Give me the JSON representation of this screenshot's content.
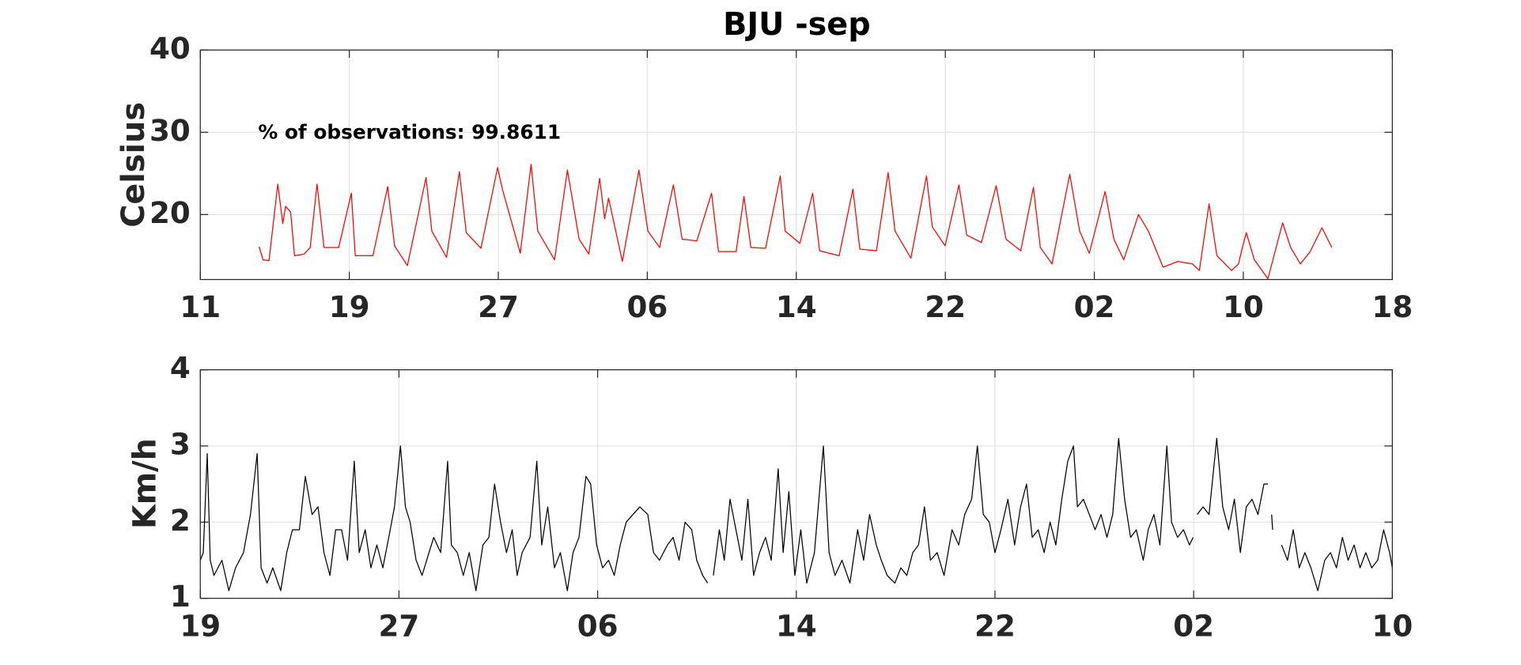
{
  "chart_data": [
    {
      "type": "line",
      "title": "BJU -sep",
      "ylabel": "Celsius",
      "annotation": "% of observations: 99.8611",
      "color": "#ff0000",
      "grid": true,
      "xlim": [
        0,
        64
      ],
      "ylim": [
        12.1,
        40
      ],
      "xticks": [
        {
          "value": 0,
          "label": "11"
        },
        {
          "value": 8,
          "label": "19"
        },
        {
          "value": 16,
          "label": "27"
        },
        {
          "value": 24,
          "label": "06"
        },
        {
          "value": 32,
          "label": "14"
        },
        {
          "value": 40,
          "label": "22"
        },
        {
          "value": 48,
          "label": "02"
        },
        {
          "value": 56,
          "label": "10"
        },
        {
          "value": 64,
          "label": "18"
        }
      ],
      "yticks": [
        20,
        30,
        40
      ],
      "x": [
        3.16,
        3.37,
        3.69,
        4.16,
        4.43,
        4.58,
        4.85,
        5.06,
        5.58,
        5.9,
        6.27,
        6.64,
        7.43,
        8.11,
        8.32,
        9.27,
        10.06,
        10.43,
        11.12,
        12.12,
        12.43,
        13.22,
        13.91,
        14.28,
        15.07,
        15.96,
        16.23,
        17.18,
        17.76,
        18.12,
        19.02,
        19.71,
        20.34,
        20.86,
        21.44,
        21.71,
        21.92,
        22.66,
        23.55,
        24.03,
        24.66,
        25.4,
        25.87,
        26.66,
        27.45,
        27.82,
        28.77,
        29.19,
        29.56,
        30.35,
        31.14,
        31.4,
        32.19,
        32.88,
        33.25,
        34.3,
        35.04,
        35.41,
        36.3,
        36.93,
        37.3,
        38.15,
        38.99,
        39.3,
        39.99,
        40.73,
        41.15,
        41.94,
        42.73,
        43.26,
        44.05,
        44.73,
        45.1,
        45.73,
        46.68,
        47.21,
        47.73,
        48.58,
        49.05,
        49.58,
        50.37,
        50.9,
        51.69,
        52.48,
        53.27,
        53.64,
        54.16,
        54.58,
        55.37,
        55.74,
        55.95,
        56.16,
        56.59,
        57.32,
        58.11,
        58.54,
        59.06,
        59.59,
        60.22,
        60.75
      ],
      "values": [
        16.1,
        14.5,
        14.4,
        23.7,
        18.9,
        21.0,
        20.3,
        15.0,
        15.2,
        16.0,
        23.7,
        16.0,
        16.0,
        22.6,
        15.0,
        15.0,
        23.4,
        16.2,
        13.8,
        24.5,
        18.0,
        14.8,
        25.2,
        17.8,
        15.9,
        25.7,
        23.0,
        15.3,
        26.1,
        18.0,
        14.5,
        25.4,
        17.0,
        15.2,
        24.4,
        19.5,
        22.0,
        14.3,
        25.4,
        18.0,
        16.0,
        23.6,
        17.0,
        16.8,
        22.6,
        15.5,
        15.5,
        22.2,
        16.0,
        15.9,
        24.7,
        18.0,
        16.5,
        22.6,
        15.6,
        15.0,
        23.1,
        15.8,
        15.6,
        25.1,
        18.0,
        14.7,
        24.7,
        18.5,
        16.2,
        23.6,
        17.5,
        16.6,
        23.5,
        17.0,
        15.6,
        23.3,
        16.0,
        14.0,
        24.9,
        18.0,
        15.3,
        22.8,
        17.0,
        14.5,
        20.0,
        18.0,
        13.6,
        14.3,
        14.0,
        13.2,
        21.3,
        15.0,
        13.2,
        14.0,
        16.0,
        17.8,
        14.5,
        12.2,
        19.0,
        16.0,
        14.0,
        15.5,
        18.4,
        16.0
      ]
    },
    {
      "type": "line",
      "ylabel": "Km/h",
      "color": "#000000",
      "grid": true,
      "xlim": [
        0,
        48
      ],
      "ylim": [
        1,
        4
      ],
      "xticks": [
        {
          "value": 0,
          "label": "19"
        },
        {
          "value": 8,
          "label": "27"
        },
        {
          "value": 16,
          "label": "06"
        },
        {
          "value": 24,
          "label": "14"
        },
        {
          "value": 32,
          "label": "22"
        },
        {
          "value": 40,
          "label": "02"
        },
        {
          "value": 48,
          "label": "10"
        }
      ],
      "yticks": [
        1,
        2,
        3,
        4
      ],
      "x": [
        0,
        0.12,
        0.28,
        0.4,
        0.55,
        0.87,
        1.15,
        1.42,
        1.74,
        2.02,
        2.29,
        2.45,
        2.69,
        2.92,
        3.24,
        3.48,
        3.71,
        3.99,
        4.23,
        4.5,
        4.74,
        4.98,
        5.22,
        5.45,
        5.69,
        5.93,
        6.2,
        6.4,
        6.64,
        6.87,
        7.11,
        7.35,
        7.59,
        7.82,
        8.06,
        8.26,
        8.45,
        8.69,
        8.93,
        9.21,
        9.4,
        9.68,
        9.96,
        10.11,
        10.35,
        10.59,
        10.83,
        11.1,
        11.38,
        11.62,
        11.85,
        12.09,
        12.33,
        12.56,
        12.76,
        12.96,
        13.28,
        13.55,
        13.75,
        13.99,
        14.26,
        14.5,
        14.78,
        15.01,
        15.25,
        15.53,
        15.72,
        15.96,
        16.2,
        16.44,
        16.67,
        16.91,
        17.15,
        17.42,
        17.7,
        18.02,
        18.25,
        18.49,
        18.81,
        19.04,
        19.28,
        19.52,
        19.79,
        19.99,
        20.23,
        20.43,
        20.54,
        20.66,
        20.9,
        21.1,
        21.33,
        21.57,
        21.81,
        22.05,
        22.28,
        22.52,
        22.76,
        22.99,
        23.27,
        23.47,
        23.7,
        23.94,
        24.18,
        24.42,
        24.73,
        25.09,
        25.32,
        25.56,
        25.84,
        26.16,
        26.47,
        26.71,
        26.95,
        27.22,
        27.42,
        27.66,
        27.97,
        28.21,
        28.45,
        28.69,
        28.92,
        29.16,
        29.4,
        29.67,
        29.95,
        30.27,
        30.54,
        30.78,
        31.06,
        31.29,
        31.53,
        31.77,
        32.0,
        32.24,
        32.52,
        32.79,
        33.03,
        33.27,
        33.5,
        33.74,
        33.98,
        34.22,
        34.45,
        34.69,
        34.93,
        35.16,
        35.32,
        35.56,
        35.8,
        36.03,
        36.27,
        36.51,
        36.74,
        36.98,
        37.22,
        37.46,
        37.69,
        37.97,
        38.17,
        38.4,
        38.64,
        38.92,
        39.11,
        39.35,
        39.59,
        39.83,
        39.98,
        40.06,
        40.14,
        40.38,
        40.62,
        40.93,
        41.17,
        41.41,
        41.64,
        41.88,
        42.12,
        42.35,
        42.59,
        42.83,
        42.99,
        43.07,
        43.14,
        43.18,
        43.3,
        43.54,
        43.78,
        44.01,
        44.25,
        44.48,
        44.72,
        45.0,
        45.28,
        45.51,
        45.75,
        45.99,
        46.22,
        46.46,
        46.7,
        46.93,
        47.17,
        47.41,
        47.65,
        47.89,
        48.0
      ],
      "values": [
        1.5,
        1.6,
        2.9,
        1.5,
        1.3,
        1.5,
        1.1,
        1.4,
        1.6,
        2.1,
        2.9,
        1.4,
        1.2,
        1.4,
        1.1,
        1.6,
        1.9,
        1.9,
        2.6,
        2.1,
        2.2,
        1.6,
        1.3,
        1.9,
        1.9,
        1.5,
        2.8,
        1.6,
        1.9,
        1.4,
        1.7,
        1.4,
        1.8,
        2.2,
        3.0,
        2.2,
        2.0,
        1.5,
        1.3,
        1.6,
        1.8,
        1.6,
        2.8,
        1.7,
        1.6,
        1.3,
        1.6,
        1.1,
        1.7,
        1.8,
        2.5,
        2.0,
        1.6,
        1.9,
        1.3,
        1.6,
        1.8,
        2.8,
        1.7,
        2.2,
        1.4,
        1.6,
        1.1,
        1.6,
        1.8,
        2.6,
        2.5,
        1.7,
        1.4,
        1.5,
        1.3,
        1.7,
        2.0,
        2.1,
        2.2,
        2.1,
        1.6,
        1.5,
        1.7,
        1.8,
        1.5,
        2.0,
        1.9,
        1.5,
        1.3,
        1.2,
        null,
        1.3,
        1.9,
        1.5,
        2.3,
        1.9,
        1.5,
        2.3,
        1.3,
        1.6,
        1.8,
        1.5,
        2.7,
        1.6,
        2.4,
        1.3,
        1.9,
        1.2,
        1.6,
        3.0,
        1.6,
        1.3,
        1.5,
        1.2,
        1.9,
        1.5,
        2.1,
        1.7,
        1.5,
        1.3,
        1.2,
        1.4,
        1.3,
        1.6,
        1.7,
        2.2,
        1.5,
        1.6,
        1.3,
        1.9,
        1.7,
        2.1,
        2.3,
        3.0,
        2.1,
        2.0,
        1.6,
        1.9,
        2.3,
        1.7,
        2.2,
        2.5,
        1.8,
        1.9,
        1.6,
        2.0,
        1.7,
        2.3,
        2.8,
        3.0,
        2.2,
        2.3,
        2.1,
        1.9,
        2.1,
        1.8,
        2.1,
        3.1,
        2.3,
        1.8,
        1.9,
        1.5,
        1.9,
        2.1,
        1.7,
        3.0,
        2.0,
        1.8,
        1.9,
        1.7,
        1.8,
        null,
        2.1,
        2.2,
        2.1,
        3.1,
        2.2,
        1.9,
        2.3,
        1.6,
        2.2,
        2.3,
        2.1,
        2.5,
        2.5,
        null,
        2.1,
        1.9,
        null,
        1.7,
        1.5,
        1.9,
        1.4,
        1.6,
        1.4,
        1.1,
        1.5,
        1.6,
        1.4,
        1.8,
        1.5,
        1.7,
        1.4,
        1.6,
        1.4,
        1.5,
        1.9,
        1.6,
        1.4
      ]
    }
  ]
}
